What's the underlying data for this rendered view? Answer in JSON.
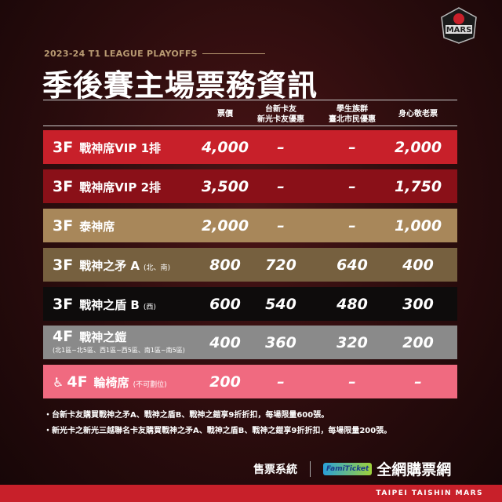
{
  "header": {
    "subtitle": "2023-24 T1 LEAGUE PLAYOFFS",
    "title": "季後賽主場票務資訊",
    "logo_text": "MARS"
  },
  "columns": [
    "票價",
    "台新卡友\n新光卡友優惠",
    "學生族群\n臺北市民優惠",
    "身心敬老票"
  ],
  "rows": [
    {
      "floor": "3F",
      "name": "戰神席VIP 1排",
      "note": "",
      "values": [
        "4,000",
        "–",
        "–",
        "2,000"
      ],
      "color": "#c8202a"
    },
    {
      "floor": "3F",
      "name": "戰神席VIP 2排",
      "note": "",
      "values": [
        "3,500",
        "–",
        "–",
        "1,750"
      ],
      "color": "#8a1018"
    },
    {
      "floor": "3F",
      "name": "泰神席",
      "note": "",
      "values": [
        "2,000",
        "–",
        "–",
        "1,000"
      ],
      "color": "#a8875a"
    },
    {
      "floor": "3F",
      "name": "戰神之矛 A",
      "note": "(北、南)",
      "values": [
        "800",
        "720",
        "640",
        "400"
      ],
      "color": "#76603f"
    },
    {
      "floor": "3F",
      "name": "戰神之盾 B",
      "note": "(西)",
      "values": [
        "600",
        "540",
        "480",
        "300"
      ],
      "color": "#0e0c0c"
    },
    {
      "floor": "4F",
      "name": "戰神之鎧",
      "note": "(北1區~北5區、西1區~西5區、南1區~南5區)",
      "values": [
        "400",
        "360",
        "320",
        "200"
      ],
      "color": "#8a8a8a"
    },
    {
      "floor": "4F",
      "name": "輪椅席",
      "note": "(不可劃位)",
      "values": [
        "200",
        "–",
        "–",
        "–"
      ],
      "color": "#f06a80",
      "icon": "wheelchair-icon"
    }
  ],
  "notes": [
    "・台新卡友購買戰神之矛A、戰神之盾B、戰神之鎧享9折折扣，每場限量600張。",
    "・新光卡之新光三越聯名卡友購買戰神之矛A、戰神之盾B、戰神之鎧享9折折扣，每場限量200張。"
  ],
  "ticketing": {
    "label": "售票系統",
    "brand": "FamiTicket",
    "site": "全網購票網"
  },
  "footer": "TAIPEI TAISHIN MARS"
}
